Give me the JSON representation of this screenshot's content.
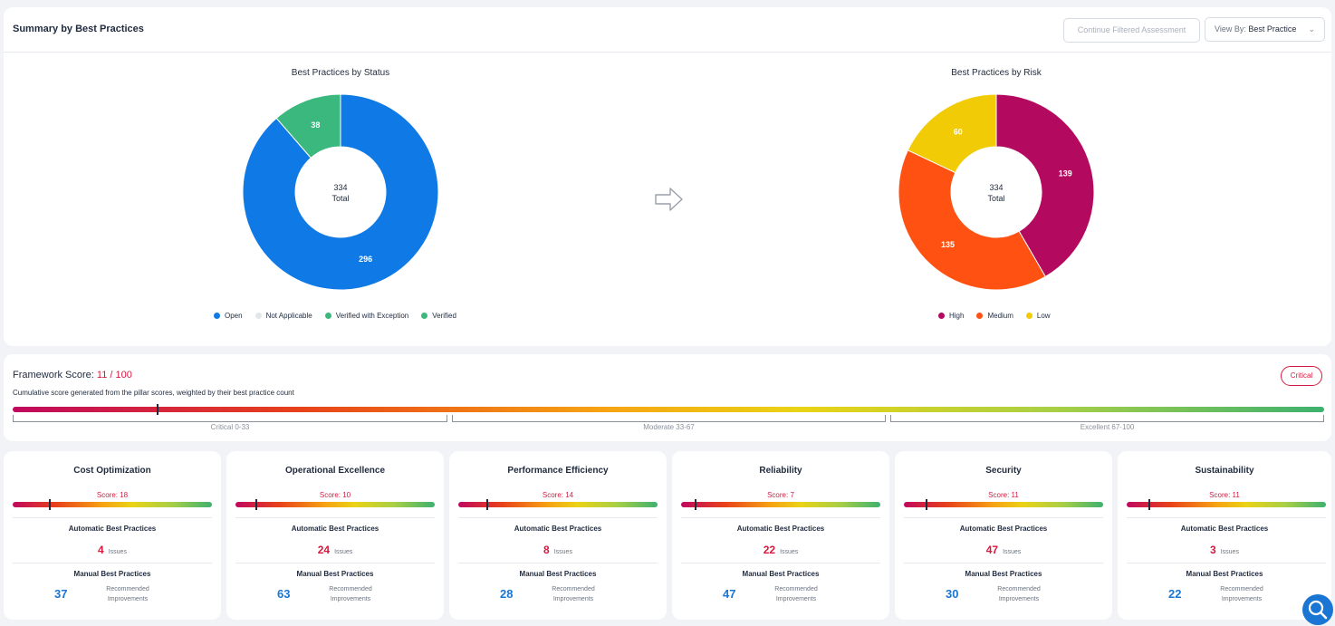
{
  "summary": {
    "title": "Summary by Best Practices",
    "continue_label": "Continue Filtered Assessment",
    "viewby_label": "View By:",
    "viewby_value": "Best Practice"
  },
  "status_chart": {
    "title": "Best Practices by Status",
    "center_value": "334",
    "center_label": "Total",
    "slices": [
      {
        "label": "Open",
        "value": 296,
        "color": "#0f7ae5"
      },
      {
        "label": "Not Applicable",
        "value": 0,
        "color": "#e3e6ea"
      },
      {
        "label": "Verified with Exception",
        "value": 38,
        "color": "#3ab87d"
      },
      {
        "label": "Verified",
        "value": 0,
        "color": "#3ab87d"
      }
    ]
  },
  "risk_chart": {
    "title": "Best Practices by Risk",
    "center_value": "334",
    "center_label": "Total",
    "slices": [
      {
        "label": "High",
        "value": 139,
        "color": "#b3095e"
      },
      {
        "label": "Medium",
        "value": 135,
        "color": "#ff5212"
      },
      {
        "label": "Low",
        "value": 60,
        "color": "#f2cb07"
      }
    ]
  },
  "framework": {
    "title": "Framework Score:",
    "score": "11 / 100",
    "score_value": 11,
    "description": "Cumulative score generated from the pillar scores, weighted by their best practice count",
    "badge": "Critical",
    "ranges": [
      "Critical 0-33",
      "Moderate 33-67",
      "Excellent 67-100"
    ]
  },
  "pillars": [
    {
      "name": "Cost Optimization",
      "score_label": "Score: 18",
      "score": 18,
      "auto_label": "Automatic Best Practices",
      "issues": "4",
      "issues_label": "Issues",
      "manual_label": "Manual Best Practices",
      "improvements": "37",
      "improvements_label": "Recommended Improvements"
    },
    {
      "name": "Operational Excellence",
      "score_label": "Score: 10",
      "score": 10,
      "auto_label": "Automatic Best Practices",
      "issues": "24",
      "issues_label": "Issues",
      "manual_label": "Manual Best Practices",
      "improvements": "63",
      "improvements_label": "Recommended Improvements"
    },
    {
      "name": "Performance Efficiency",
      "score_label": "Score: 14",
      "score": 14,
      "auto_label": "Automatic Best Practices",
      "issues": "8",
      "issues_label": "Issues",
      "manual_label": "Manual Best Practices",
      "improvements": "28",
      "improvements_label": "Recommended Improvements"
    },
    {
      "name": "Reliability",
      "score_label": "Score: 7",
      "score": 7,
      "auto_label": "Automatic Best Practices",
      "issues": "22",
      "issues_label": "Issues",
      "manual_label": "Manual Best Practices",
      "improvements": "47",
      "improvements_label": "Recommended Improvements"
    },
    {
      "name": "Security",
      "score_label": "Score: 11",
      "score": 11,
      "auto_label": "Automatic Best Practices",
      "issues": "47",
      "issues_label": "Issues",
      "manual_label": "Manual Best Practices",
      "improvements": "30",
      "improvements_label": "Recommended Improvements"
    },
    {
      "name": "Sustainability",
      "score_label": "Score: 11",
      "score": 11,
      "auto_label": "Automatic Best Practices",
      "issues": "3",
      "issues_label": "Issues",
      "manual_label": "Manual Best Practices",
      "improvements": "22",
      "improvements_label": "Recommended Improvements"
    }
  ],
  "icons": {
    "arrow": "arrow-right-icon",
    "chevron": "chevron-down-icon",
    "help": "search-help-icon"
  }
}
